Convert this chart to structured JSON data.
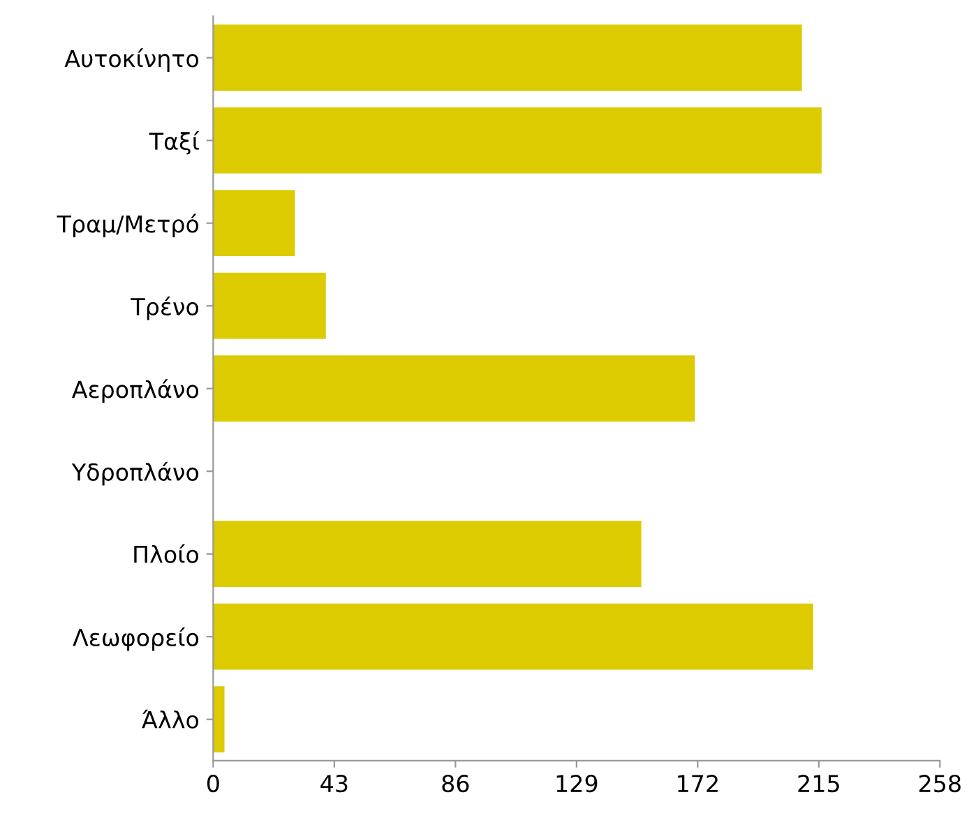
{
  "chart_data": {
    "type": "bar",
    "orientation": "horizontal",
    "categories": [
      "Αυτοκίνητο",
      "Ταξί",
      "Τραμ/Μετρό",
      "Τρένο",
      "Αεροπλάνο",
      "Υδροπλάνο",
      "Πλοίο",
      "Λεωφορείο",
      "Άλλο"
    ],
    "values": [
      209,
      216,
      29,
      40,
      171,
      0,
      152,
      213,
      4
    ],
    "color": "#dccb00",
    "xlim": [
      0,
      258
    ],
    "xticks": [
      0,
      43,
      86,
      129,
      172,
      215,
      258
    ],
    "grid": false
  }
}
